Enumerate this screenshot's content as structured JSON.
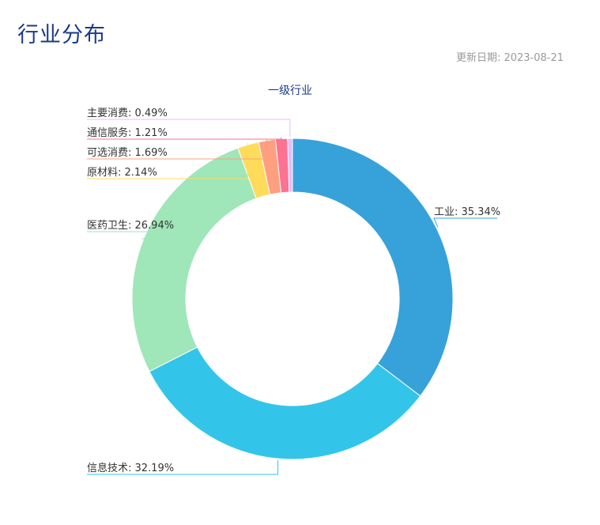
{
  "header": {
    "title": "行业分布",
    "update_date": "更新日期: 2023-08-21"
  },
  "chart_data": {
    "type": "pie",
    "variant": "donut",
    "title": "一级行业",
    "categories": [
      "工业",
      "信息技术",
      "医药卫生",
      "原材料",
      "可选消费",
      "通信服务",
      "主要消费"
    ],
    "values": [
      35.34,
      32.19,
      26.94,
      2.14,
      1.69,
      1.21,
      0.49
    ],
    "value_unit": "%",
    "colors": [
      "#37a2da",
      "#32c5e9",
      "#9fe6b8",
      "#ffdb5c",
      "#ff9f7f",
      "#fb7293",
      "#e7bcf3"
    ],
    "labels": [
      "工业: 35.34%",
      "信息技术: 32.19%",
      "医药卫生: 26.94%",
      "原材料: 2.14%",
      "可选消费: 1.69%",
      "通信服务: 1.21%",
      "主要消费: 0.49%"
    ]
  }
}
